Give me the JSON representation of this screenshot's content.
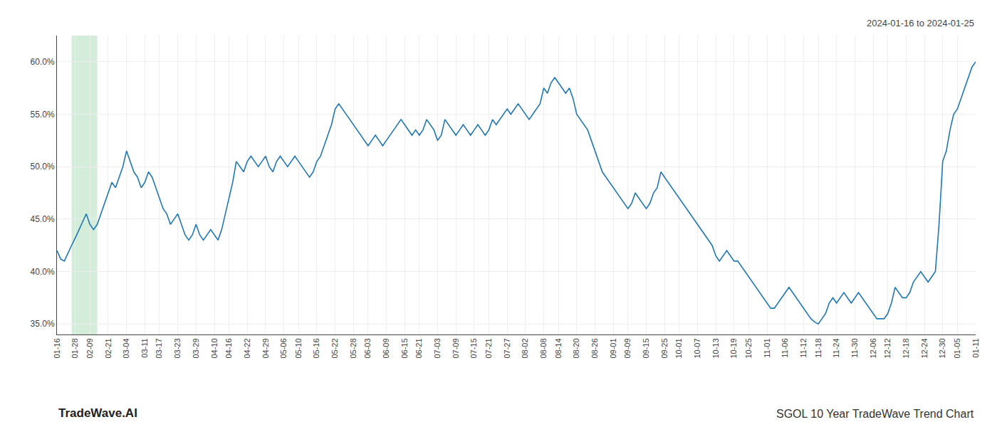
{
  "chart_data": {
    "type": "line",
    "annotations": [
      "2024-01-16 to 2024-01-25",
      "TradeWave.AI",
      "SGOL 10 Year TradeWave Trend Chart"
    ],
    "color": "#1f77b4",
    "grid": true,
    "ylim": [
      34.0,
      62.5
    ],
    "yticks": [
      {
        "value": 35.0,
        "label": "35.0%"
      },
      {
        "value": 40.0,
        "label": "40.0%"
      },
      {
        "value": 45.0,
        "label": "45.0%"
      },
      {
        "value": 50.0,
        "label": "50.0%"
      },
      {
        "value": 55.0,
        "label": "55.0%"
      },
      {
        "value": 60.0,
        "label": "60.0%"
      }
    ],
    "shaded": {
      "start": 4,
      "end": 11,
      "color": "#d4edda"
    },
    "categories": [
      "01-16",
      null,
      null,
      null,
      null,
      "01-28",
      null,
      null,
      null,
      "02-09",
      null,
      null,
      null,
      null,
      "02-21",
      null,
      null,
      null,
      null,
      "03-04",
      null,
      null,
      null,
      null,
      "03-11",
      null,
      null,
      null,
      "03-17",
      null,
      null,
      null,
      null,
      "03-23",
      null,
      null,
      null,
      null,
      "03-29",
      null,
      null,
      null,
      null,
      "04-10",
      null,
      null,
      null,
      "04-16",
      null,
      null,
      null,
      null,
      "04-22",
      null,
      null,
      null,
      null,
      "04-29",
      null,
      null,
      null,
      null,
      "05-06",
      null,
      null,
      null,
      "05-10",
      null,
      null,
      null,
      null,
      "05-16",
      null,
      null,
      null,
      null,
      "05-22",
      null,
      null,
      null,
      null,
      "05-28",
      null,
      null,
      null,
      "06-03",
      null,
      null,
      null,
      null,
      "06-09",
      null,
      null,
      null,
      null,
      "06-15",
      null,
      null,
      null,
      "06-21",
      null,
      null,
      null,
      null,
      "07-03",
      null,
      null,
      null,
      null,
      "07-09",
      null,
      null,
      null,
      null,
      "07-15",
      null,
      null,
      null,
      "07-21",
      null,
      null,
      null,
      null,
      "07-27",
      null,
      null,
      null,
      null,
      "08-02",
      null,
      null,
      null,
      null,
      "08-08",
      null,
      null,
      null,
      "08-14",
      null,
      null,
      null,
      null,
      "08-20",
      null,
      null,
      null,
      null,
      "08-26",
      null,
      null,
      null,
      null,
      "09-01",
      null,
      null,
      null,
      "09-09",
      null,
      null,
      null,
      null,
      "09-15",
      null,
      null,
      null,
      null,
      "09-25",
      null,
      null,
      null,
      "10-01",
      null,
      null,
      null,
      null,
      "10-07",
      null,
      null,
      null,
      null,
      "10-13",
      null,
      null,
      null,
      null,
      "10-19",
      null,
      null,
      null,
      "10-25",
      null,
      null,
      null,
      null,
      "11-01",
      null,
      null,
      null,
      null,
      "11-06",
      null,
      null,
      null,
      null,
      "11-12",
      null,
      null,
      null,
      "11-18",
      null,
      null,
      null,
      null,
      "11-24",
      null,
      null,
      null,
      null,
      "11-30",
      null,
      null,
      null,
      null,
      "12-06",
      null,
      null,
      null,
      "12-12",
      null,
      null,
      null,
      null,
      "12-18",
      null,
      null,
      null,
      null,
      "12-24",
      null,
      null,
      null,
      null,
      "12-30",
      null,
      null,
      null,
      "01-05",
      null,
      null,
      null,
      null,
      "01-11"
    ],
    "values": [
      42.0,
      41.2,
      41.0,
      41.8,
      42.5,
      43.2,
      44.0,
      44.8,
      45.5,
      44.5,
      44.0,
      44.5,
      45.5,
      46.5,
      47.5,
      48.5,
      48.0,
      49.0,
      50.0,
      51.5,
      50.5,
      49.5,
      49.0,
      48.0,
      48.5,
      49.5,
      49.0,
      48.0,
      47.0,
      46.0,
      45.5,
      44.5,
      45.0,
      45.5,
      44.5,
      43.5,
      43.0,
      43.5,
      44.5,
      43.5,
      43.0,
      43.5,
      44.0,
      43.5,
      43.0,
      44.0,
      45.5,
      47.0,
      48.5,
      50.5,
      50.0,
      49.5,
      50.5,
      51.0,
      50.5,
      50.0,
      50.5,
      51.0,
      50.0,
      49.5,
      50.5,
      51.0,
      50.5,
      50.0,
      50.5,
      51.0,
      50.5,
      50.0,
      49.5,
      49.0,
      49.5,
      50.5,
      51.0,
      52.0,
      53.0,
      54.0,
      55.5,
      56.0,
      55.5,
      55.0,
      54.5,
      54.0,
      53.5,
      53.0,
      52.5,
      52.0,
      52.5,
      53.0,
      52.5,
      52.0,
      52.5,
      53.0,
      53.5,
      54.0,
      54.5,
      54.0,
      53.5,
      53.0,
      53.5,
      53.0,
      53.5,
      54.5,
      54.0,
      53.5,
      52.5,
      53.0,
      54.5,
      54.0,
      53.5,
      53.0,
      53.5,
      54.0,
      53.5,
      53.0,
      53.5,
      54.0,
      53.5,
      53.0,
      53.5,
      54.5,
      54.0,
      54.5,
      55.0,
      55.5,
      55.0,
      55.5,
      56.0,
      55.5,
      55.0,
      54.5,
      55.0,
      55.5,
      56.0,
      57.5,
      57.0,
      58.0,
      58.5,
      58.0,
      57.5,
      57.0,
      57.5,
      56.5,
      55.0,
      54.5,
      54.0,
      53.5,
      52.5,
      51.5,
      50.5,
      49.5,
      49.0,
      48.5,
      48.0,
      47.5,
      47.0,
      46.5,
      46.0,
      46.5,
      47.5,
      47.0,
      46.5,
      46.0,
      46.5,
      47.5,
      48.0,
      49.5,
      49.0,
      48.5,
      48.0,
      47.5,
      47.0,
      46.5,
      46.0,
      45.5,
      45.0,
      44.5,
      44.0,
      43.5,
      43.0,
      42.5,
      41.5,
      41.0,
      41.5,
      42.0,
      41.5,
      41.0,
      41.0,
      40.5,
      40.0,
      39.5,
      39.0,
      38.5,
      38.0,
      37.5,
      37.0,
      36.5,
      36.5,
      37.0,
      37.5,
      38.0,
      38.5,
      38.0,
      37.5,
      37.0,
      36.5,
      36.0,
      35.5,
      35.2,
      35.0,
      35.5,
      36.0,
      37.0,
      37.5,
      37.0,
      37.5,
      38.0,
      37.5,
      37.0,
      37.5,
      38.0,
      37.5,
      37.0,
      36.5,
      36.0,
      35.5,
      35.5,
      35.5,
      36.0,
      37.0,
      38.5,
      38.0,
      37.5,
      37.5,
      38.0,
      39.0,
      39.5,
      40.0,
      39.5,
      39.0,
      39.5,
      40.0,
      44.5,
      50.5,
      51.5,
      53.5,
      55.0,
      55.5,
      56.5,
      57.5,
      58.5,
      59.5,
      60.0
    ]
  }
}
